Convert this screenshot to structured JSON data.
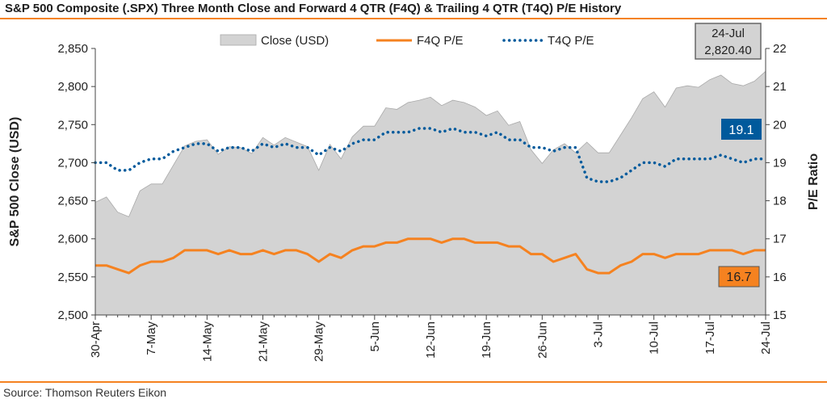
{
  "title": "S&P 500 Composite (.SPX) Three Month Close and Forward 4 QTR (F4Q) & Trailing 4 QTR (T4Q) P/E History",
  "source": "Source: Thomson Reuters Eikon",
  "chart_data": {
    "type": "area",
    "title": "S&P 500 Composite (.SPX) Three Month Close and Forward 4 QTR (F4Q) & Trailing 4 QTR (T4Q) P/E History",
    "ylabel": "S&P 500 Close (USD)",
    "y2label": "P/E Ratio",
    "ylim": [
      2500,
      2850
    ],
    "y2lim": [
      15,
      22
    ],
    "yticks": [
      "2,500",
      "2,550",
      "2,600",
      "2,650",
      "2,700",
      "2,750",
      "2,800",
      "2,850"
    ],
    "y2ticks": [
      "15",
      "16",
      "17",
      "18",
      "19",
      "20",
      "21",
      "22"
    ],
    "xtick_labels": [
      "30-Apr",
      "7-May",
      "14-May",
      "21-May",
      "29-May",
      "5-Jun",
      "12-Jun",
      "19-Jun",
      "26-Jun",
      "3-Jul",
      "10-Jul",
      "17-Jul",
      "24-Jul"
    ],
    "xtick_index": [
      0,
      5,
      10,
      15,
      20,
      25,
      30,
      35,
      40,
      45,
      50,
      55,
      60
    ],
    "legend": [
      "Close (USD)",
      "F4Q P/E",
      "T4Q P/E"
    ],
    "legend_position": "top",
    "grid": false,
    "colors": {
      "close": "#d3d3d3",
      "f4q": "#f58220",
      "t4q": "#005a9c"
    },
    "series": [
      {
        "name": "Close (USD)",
        "axis": "left",
        "values": [
          2648,
          2655,
          2635,
          2629,
          2663,
          2672,
          2672,
          2697,
          2722,
          2728,
          2730,
          2711,
          2721,
          2720,
          2712,
          2733,
          2723,
          2733,
          2727,
          2721,
          2690,
          2724,
          2705,
          2734,
          2748,
          2748,
          2772,
          2770,
          2779,
          2782,
          2786,
          2775,
          2782,
          2779,
          2773,
          2762,
          2768,
          2749,
          2754,
          2717,
          2699,
          2717,
          2725,
          2713,
          2727,
          2713,
          2713,
          2736,
          2759,
          2784,
          2793,
          2773,
          2798,
          2801,
          2799,
          2809,
          2815,
          2804,
          2801,
          2807,
          2820
        ]
      },
      {
        "name": "F4Q P/E",
        "axis": "right",
        "values": [
          16.3,
          16.3,
          16.2,
          16.1,
          16.3,
          16.4,
          16.4,
          16.5,
          16.7,
          16.7,
          16.7,
          16.6,
          16.7,
          16.6,
          16.6,
          16.7,
          16.6,
          16.7,
          16.7,
          16.6,
          16.4,
          16.6,
          16.5,
          16.7,
          16.8,
          16.8,
          16.9,
          16.9,
          17.0,
          17.0,
          17.0,
          16.9,
          17.0,
          17.0,
          16.9,
          16.9,
          16.9,
          16.8,
          16.8,
          16.6,
          16.6,
          16.4,
          16.5,
          16.6,
          16.2,
          16.1,
          16.1,
          16.3,
          16.4,
          16.6,
          16.6,
          16.5,
          16.6,
          16.6,
          16.6,
          16.7,
          16.7,
          16.7,
          16.6,
          16.7,
          16.7
        ]
      },
      {
        "name": "T4Q P/E",
        "axis": "right",
        "values": [
          19.0,
          19.0,
          18.8,
          18.8,
          19.0,
          19.1,
          19.1,
          19.3,
          19.4,
          19.5,
          19.5,
          19.3,
          19.4,
          19.4,
          19.3,
          19.5,
          19.4,
          19.5,
          19.4,
          19.4,
          19.2,
          19.4,
          19.3,
          19.5,
          19.6,
          19.6,
          19.8,
          19.8,
          19.8,
          19.9,
          19.9,
          19.8,
          19.9,
          19.8,
          19.8,
          19.7,
          19.8,
          19.6,
          19.6,
          19.4,
          19.4,
          19.3,
          19.4,
          19.4,
          18.6,
          18.5,
          18.5,
          18.6,
          18.8,
          19.0,
          19.0,
          18.9,
          19.1,
          19.1,
          19.1,
          19.1,
          19.2,
          19.1,
          19.0,
          19.1,
          19.1
        ]
      }
    ],
    "annotations": {
      "close": {
        "date": "24-Jul",
        "value": "2,820.40"
      },
      "t4q_last": "19.1",
      "f4q_last": "16.7"
    }
  }
}
